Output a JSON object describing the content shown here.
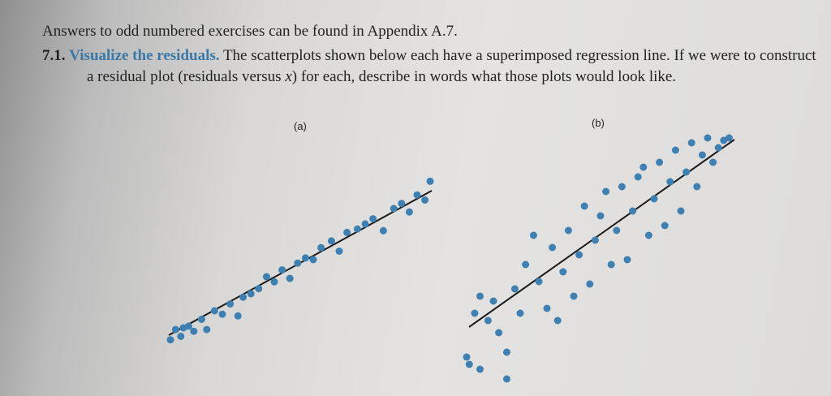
{
  "note": "Answers to odd numbered exercises can be found in Appendix A.7.",
  "exercise": {
    "number": "7.1.",
    "title": "Visualize the residuals.",
    "text_before": "The scatterplots shown below each have a superimposed regression line. If we were to construct a residual plot (residuals versus ",
    "variable": "x",
    "text_after": ") for each, describe in words what those plots would look like."
  },
  "plots": [
    {
      "label": "(a)",
      "type": "scatter",
      "x": [
        0,
        2,
        4,
        5,
        7,
        9,
        12,
        14,
        17,
        20,
        23,
        26,
        28,
        31,
        34,
        37,
        40,
        43,
        46,
        49,
        52,
        55,
        58,
        62,
        65,
        68,
        72,
        75,
        78,
        82,
        86,
        89,
        92,
        95,
        98,
        100
      ],
      "y": [
        3,
        9,
        5,
        10,
        11,
        8,
        15,
        9,
        20,
        18,
        24,
        17,
        28,
        30,
        33,
        40,
        37,
        44,
        39,
        48,
        51,
        50,
        57,
        61,
        55,
        66,
        68,
        71,
        74,
        67,
        80,
        83,
        78,
        88,
        85,
        96
      ]
    },
    {
      "label": "(b)",
      "type": "scatter",
      "x": [
        0,
        1,
        5,
        15,
        3,
        5,
        8,
        10,
        12,
        15,
        18,
        20,
        22,
        25,
        27,
        30,
        32,
        34,
        36,
        38,
        40,
        42,
        44,
        46,
        48,
        50,
        52,
        54,
        56,
        58,
        60,
        62,
        64,
        66,
        68,
        70,
        72,
        74,
        76,
        78,
        80,
        82,
        84,
        86,
        88,
        90,
        92,
        94,
        96,
        98
      ],
      "y": [
        10,
        7,
        5,
        1,
        28,
        35,
        25,
        33,
        20,
        12,
        38,
        28,
        48,
        60,
        41,
        30,
        55,
        25,
        45,
        62,
        35,
        52,
        72,
        40,
        58,
        68,
        78,
        48,
        62,
        80,
        50,
        70,
        84,
        88,
        60,
        75,
        90,
        64,
        82,
        95,
        70,
        86,
        98,
        80,
        93,
        100,
        90,
        96,
        99,
        100
      ]
    }
  ]
}
